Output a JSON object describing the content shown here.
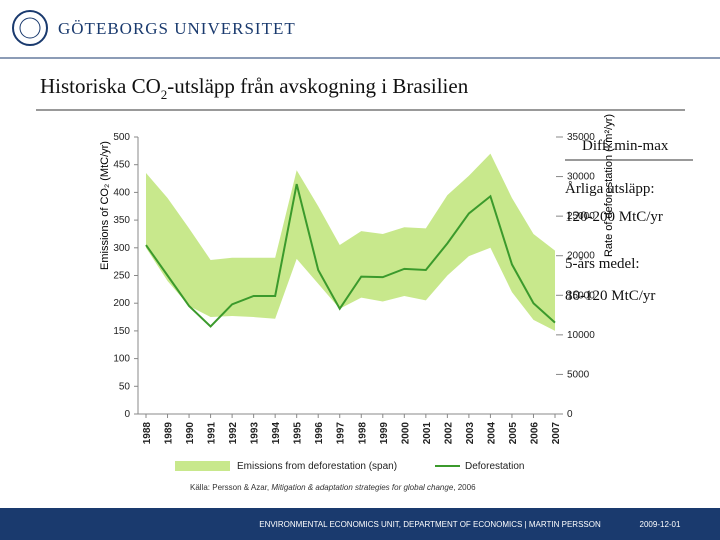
{
  "header": {
    "university": "GÖTEBORGS UNIVERSITET"
  },
  "slide_title": {
    "before": "Historiska CO",
    "subscript": "2",
    "after": "-utsläpp från avskogning i Brasilien"
  },
  "chart_data": {
    "type": "band-line",
    "y_label": "Emissions of CO₂ (MtC/yr)",
    "y2_label": "Rate of deforestation (km²/yr)",
    "categories": [
      "1988",
      "1989",
      "1990",
      "1991",
      "1992",
      "1993",
      "1994",
      "1995",
      "1996",
      "1997",
      "1998",
      "1999",
      "2000",
      "2001",
      "2002",
      "2003",
      "2004",
      "2005",
      "2006",
      "2007"
    ],
    "series": [
      {
        "name": "Emissions from deforestation (span)",
        "color": "#c8e88c",
        "upper": [
          435,
          390,
          335,
          278,
          282,
          282,
          282,
          440,
          375,
          305,
          330,
          325,
          337,
          335,
          395,
          430,
          470,
          390,
          325,
          295
        ],
        "lower": [
          300,
          240,
          195,
          175,
          177,
          175,
          172,
          280,
          235,
          190,
          210,
          203,
          213,
          205,
          250,
          285,
          300,
          220,
          170,
          150
        ]
      },
      {
        "name": "Deforestation",
        "color": "#3b9a2c",
        "values": [
          305,
          250,
          195,
          158,
          198,
          213,
          213,
          415,
          260,
          190,
          248,
          247,
          262,
          260,
          308,
          362,
          393,
          270,
          200,
          165
        ]
      }
    ],
    "ylim": [
      0,
      500
    ],
    "yticks": [
      0,
      50,
      100,
      150,
      200,
      250,
      300,
      350,
      400,
      450,
      500
    ],
    "y2lim": [
      0,
      35000
    ],
    "y2ticks": [
      0,
      5000,
      10000,
      15000,
      20000,
      25000,
      30000,
      35000
    ]
  },
  "notes": [
    "Diff. min-max",
    "Årliga utsläpp:",
    "120-200 MtC/yr",
    "5-års medel:",
    "80-120 MtC/yr"
  ],
  "source": {
    "prefix": "Källa: Persson & Azar, ",
    "italic": "Mitigation & adaptation strategies for global change",
    "suffix": ", 2006"
  },
  "footer": {
    "unit": "ENVIRONMENTAL ECONOMICS UNIT, DEPARTMENT OF ECONOMICS  |  MARTIN PERSSON",
    "date": "2009-12-01"
  }
}
